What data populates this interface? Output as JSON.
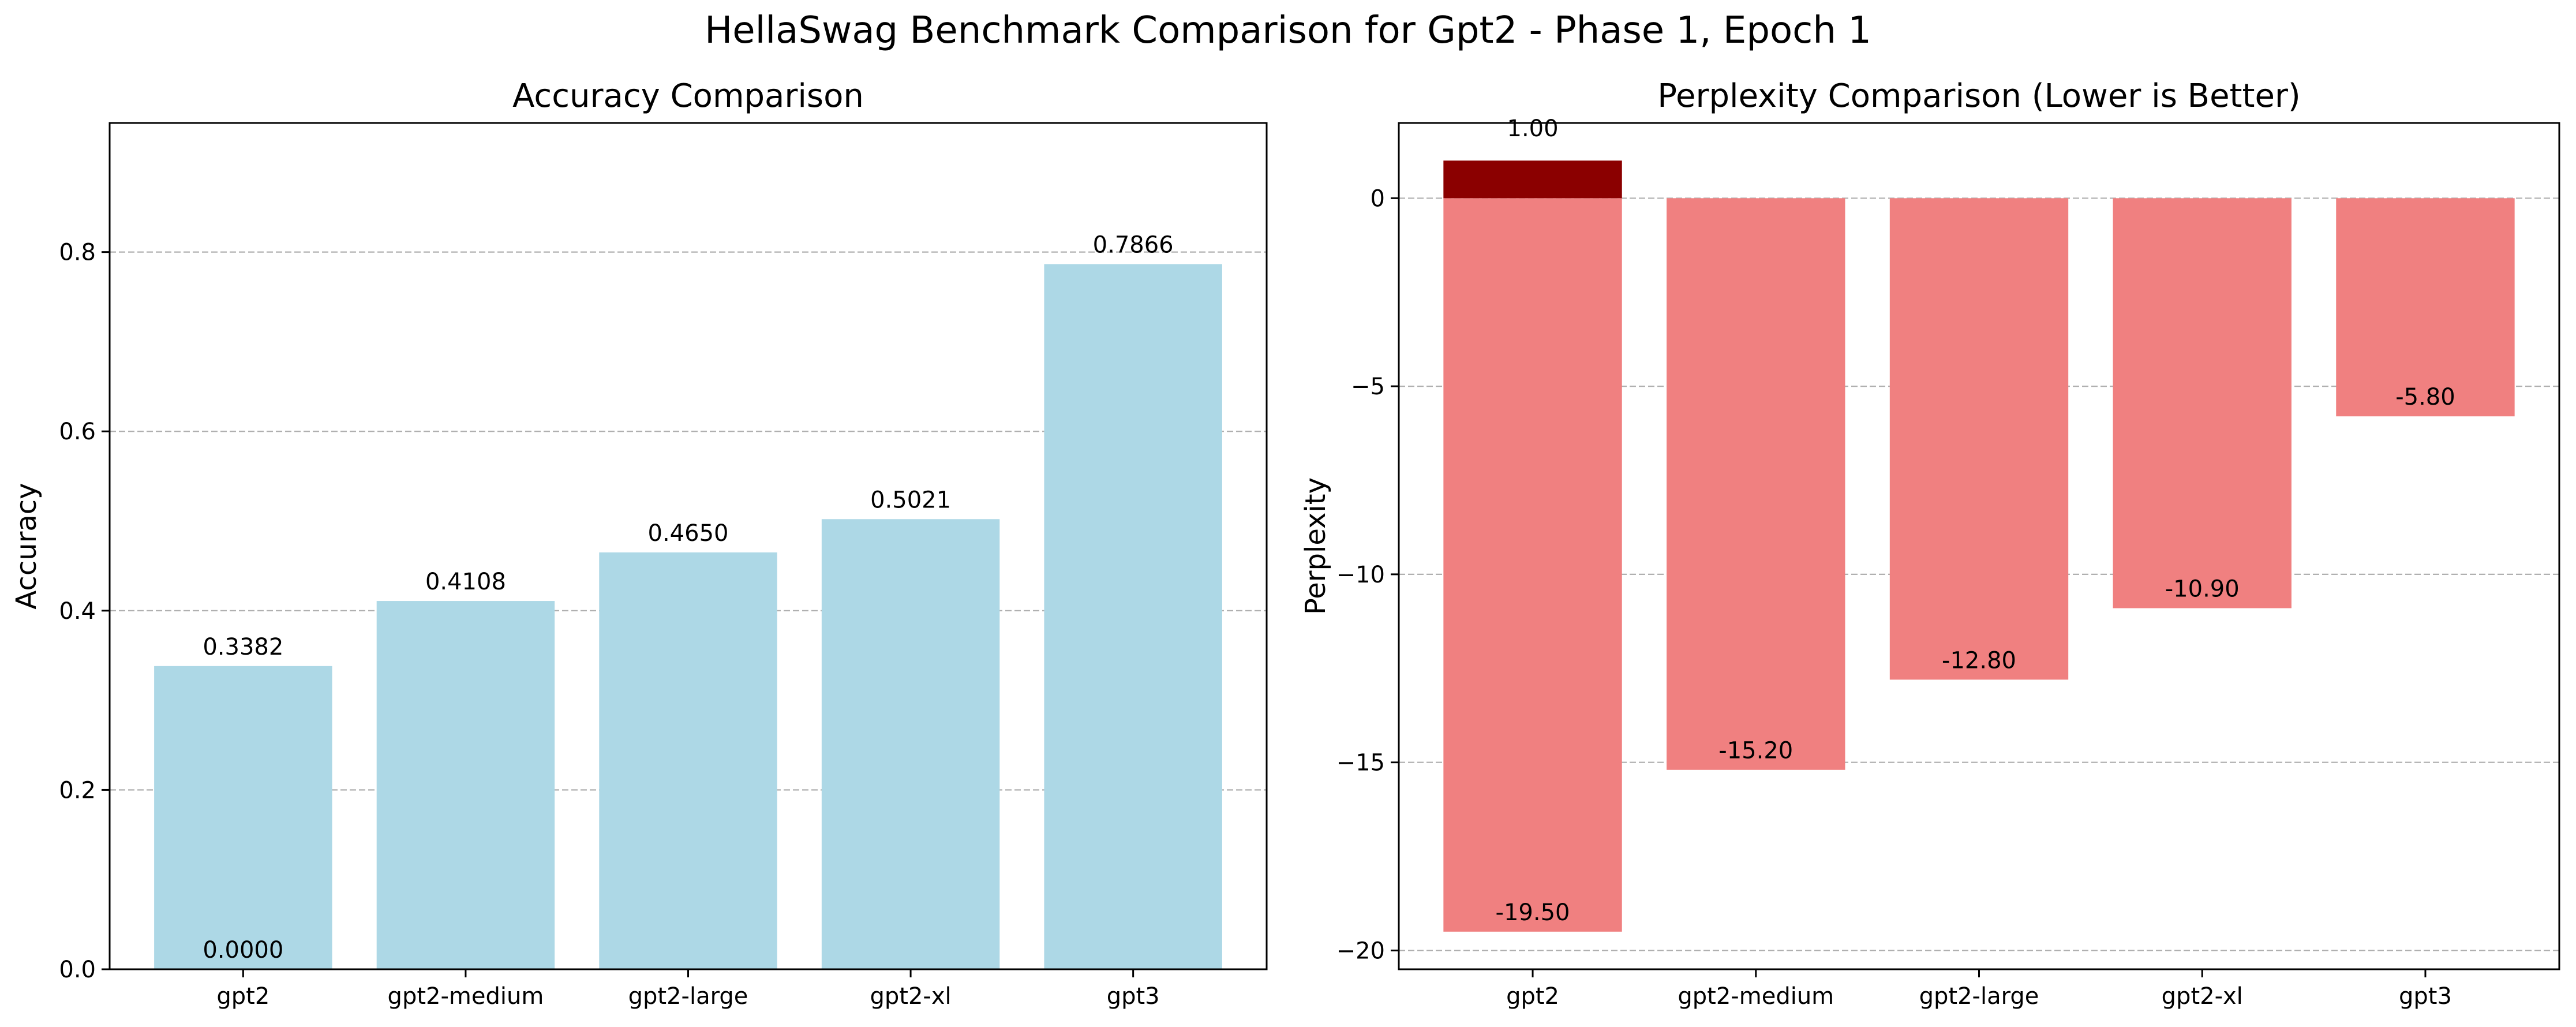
{
  "figure": {
    "suptitle": "HellaSwag Benchmark Comparison for Gpt2 - Phase 1, Epoch 1"
  },
  "chart_data": [
    {
      "type": "bar",
      "title": "Accuracy Comparison",
      "xlabel": "",
      "ylabel": "Accuracy",
      "categories": [
        "gpt2",
        "gpt2-medium",
        "gpt2-large",
        "gpt2-xl",
        "gpt3"
      ],
      "values": [
        0.3382,
        0.4108,
        0.465,
        0.5021,
        0.7866
      ],
      "data_labels": [
        "0.3382",
        "0.4108",
        "0.4650",
        "0.5021",
        "0.7866"
      ],
      "annotations": [
        {
          "text": "0.0000",
          "category": "gpt2",
          "y": 0.0
        }
      ],
      "ylim": [
        0,
        0.944
      ],
      "yticks": [
        0.0,
        0.2,
        0.4,
        0.6,
        0.8
      ],
      "ytick_labels": [
        "0.0",
        "0.2",
        "0.4",
        "0.6",
        "0.8"
      ],
      "grid": "y-dashed",
      "bar_color": "#ADD8E6"
    },
    {
      "type": "bar",
      "title": "Perplexity Comparison (Lower is Better)",
      "xlabel": "",
      "ylabel": "Perplexity",
      "categories": [
        "gpt2",
        "gpt2-medium",
        "gpt2-large",
        "gpt2-xl",
        "gpt3"
      ],
      "values": [
        -19.5,
        -15.2,
        -12.8,
        -10.9,
        -5.8
      ],
      "data_labels": [
        "-19.50",
        "-15.20",
        "-12.80",
        "-10.90",
        "-5.80"
      ],
      "overlay": {
        "category": "gpt2",
        "value": 1.0,
        "label": "1.00",
        "color": "#8B0000"
      },
      "ylim": [
        -20.5,
        2.0
      ],
      "yticks": [
        -20,
        -15,
        -10,
        -5,
        0
      ],
      "ytick_labels": [
        "−20",
        "−15",
        "−10",
        "−5",
        "0"
      ],
      "grid": "y-dashed",
      "bar_color": "#F08080"
    }
  ]
}
